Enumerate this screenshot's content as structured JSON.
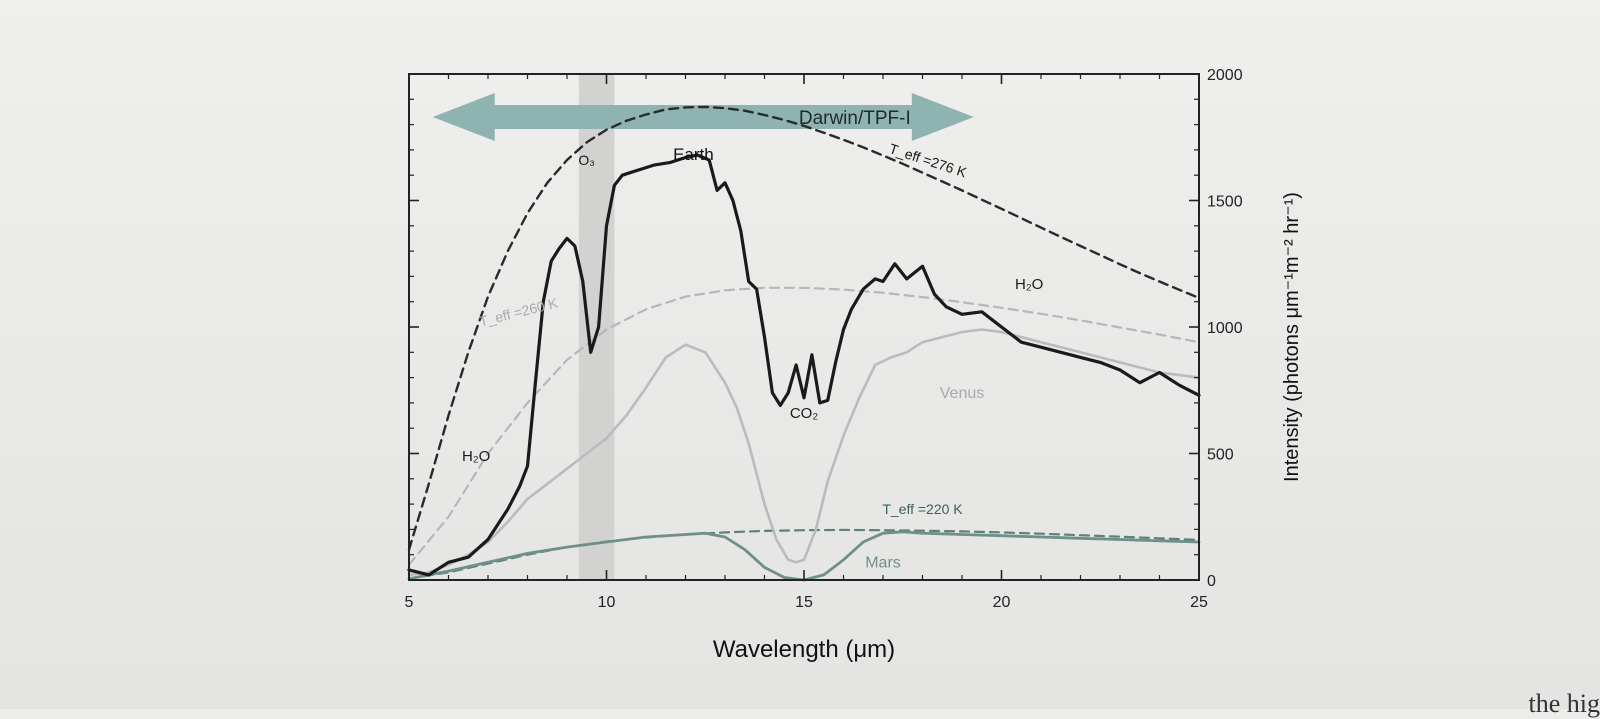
{
  "page": {
    "bottom_fragment": "the hig"
  },
  "colors": {
    "earth": "#1a1a1a",
    "venus": "#b9bcbc",
    "mars": "#6f8f8b",
    "blackbody_276": "#2a2a2a",
    "blackbody_260": "#b5b8b8",
    "blackbody_220": "#5f7f7b",
    "darwin_arrow": "#8fb3b1",
    "o3_band": "#d2d2d0"
  },
  "chart_data": {
    "type": "line",
    "title": "",
    "xlabel": "Wavelength (μm)",
    "ylabel": "Intensity (photons μm⁻¹m⁻² hr⁻¹)",
    "xlim": [
      5,
      25
    ],
    "ylim": [
      0,
      2000
    ],
    "x_ticks": [
      5,
      10,
      15,
      20,
      25
    ],
    "y_ticks": [
      0,
      500,
      1000,
      1500,
      2000
    ],
    "x_tick_labels": [
      "5",
      "10",
      "15",
      "20",
      "25"
    ],
    "y_tick_labels": [
      "0",
      "500",
      "1000",
      "1500",
      "2000"
    ],
    "y_axis_side": "right",
    "grid": false,
    "bands": [
      {
        "name": "O3",
        "label": "O₃",
        "x_range": [
          9.3,
          10.2
        ]
      }
    ],
    "arrow": {
      "label": "Darwin/TPF-I",
      "x_range": [
        5.6,
        19.3
      ],
      "y": 1830
    },
    "annotations": [
      {
        "text": "H₂O",
        "x": 6.7,
        "y": 470
      },
      {
        "text": "Earth",
        "x": 12.2,
        "y": 1660
      },
      {
        "text": "CO₂",
        "x": 15.0,
        "y": 640
      },
      {
        "text": "H₂O",
        "x": 20.7,
        "y": 1150
      },
      {
        "text": "Venus",
        "x": 19.0,
        "y": 720
      },
      {
        "text": "Mars",
        "x": 17.0,
        "y": 50
      },
      {
        "text": "T_eff =276 K",
        "x": 18.1,
        "y": 1640
      },
      {
        "text": "T_eff =260 K",
        "x": 7.8,
        "y": 1040
      },
      {
        "text": "T_eff =220 K",
        "x": 18.0,
        "y": 260
      }
    ],
    "series": [
      {
        "name": "Earth",
        "style": "solid",
        "x": [
          5,
          5.5,
          6,
          6.5,
          7,
          7.5,
          7.8,
          8,
          8.2,
          8.4,
          8.6,
          8.8,
          9,
          9.2,
          9.4,
          9.6,
          9.8,
          10,
          10.2,
          10.4,
          10.8,
          11.2,
          11.6,
          12,
          12.3,
          12.6,
          12.8,
          13,
          13.2,
          13.4,
          13.6,
          13.8,
          14,
          14.2,
          14.4,
          14.6,
          14.8,
          15,
          15.2,
          15.4,
          15.6,
          15.8,
          16,
          16.2,
          16.5,
          16.8,
          17,
          17.3,
          17.6,
          18,
          18.3,
          18.6,
          19,
          19.5,
          20,
          20.5,
          21,
          21.5,
          22,
          22.5,
          23,
          23.5,
          24,
          24.5,
          25
        ],
        "y": [
          40,
          20,
          70,
          90,
          160,
          280,
          370,
          450,
          780,
          1100,
          1260,
          1310,
          1350,
          1320,
          1180,
          900,
          1000,
          1400,
          1560,
          1600,
          1620,
          1640,
          1650,
          1670,
          1680,
          1660,
          1540,
          1570,
          1500,
          1380,
          1180,
          1150,
          960,
          740,
          690,
          740,
          850,
          720,
          890,
          700,
          710,
          860,
          990,
          1070,
          1150,
          1190,
          1180,
          1250,
          1190,
          1240,
          1130,
          1080,
          1050,
          1060,
          1000,
          940,
          920,
          900,
          880,
          860,
          830,
          780,
          820,
          770,
          730
        ]
      },
      {
        "name": "Venus",
        "style": "solid",
        "x": [
          5,
          5.5,
          6,
          6.5,
          7,
          7.5,
          8,
          8.5,
          9,
          9.5,
          10,
          10.5,
          11,
          11.5,
          12,
          12.5,
          13,
          13.3,
          13.6,
          14,
          14.3,
          14.6,
          14.8,
          15,
          15.3,
          15.6,
          16,
          16.4,
          16.8,
          17.2,
          17.6,
          18,
          18.5,
          19,
          19.5,
          20,
          20.5,
          21,
          21.5,
          22,
          22.5,
          23,
          23.5,
          24,
          24.5,
          25
        ],
        "y": [
          20,
          30,
          60,
          100,
          150,
          230,
          320,
          380,
          440,
          500,
          560,
          650,
          760,
          880,
          930,
          900,
          780,
          680,
          540,
          300,
          160,
          80,
          70,
          80,
          200,
          390,
          570,
          720,
          850,
          880,
          900,
          940,
          960,
          980,
          990,
          980,
          960,
          940,
          920,
          900,
          880,
          860,
          840,
          820,
          810,
          800
        ]
      },
      {
        "name": "Mars",
        "style": "solid",
        "x": [
          5,
          6,
          7,
          8,
          9,
          10,
          11,
          12,
          12.5,
          13,
          13.5,
          14,
          14.5,
          15,
          15.5,
          16,
          16.5,
          17,
          17.5,
          18,
          19,
          20,
          21,
          22,
          23,
          24,
          25
        ],
        "y": [
          5,
          35,
          70,
          105,
          130,
          150,
          170,
          180,
          185,
          170,
          120,
          50,
          10,
          0,
          20,
          80,
          150,
          185,
          190,
          185,
          180,
          175,
          170,
          165,
          160,
          155,
          150
        ]
      },
      {
        "name": "Teff=276 K",
        "style": "dashed",
        "x": [
          5,
          5.5,
          6,
          6.5,
          7,
          7.5,
          8,
          8.5,
          9,
          9.5,
          10,
          10.5,
          11,
          11.5,
          12,
          12.5,
          13,
          13.5,
          14,
          14.5,
          15,
          15.5,
          16,
          16.5,
          17,
          17.5,
          18,
          18.5,
          19,
          19.5,
          20,
          20.5,
          21,
          21.5,
          22,
          22.5,
          23,
          23.5,
          24,
          24.5,
          25
        ],
        "y": [
          120,
          380,
          650,
          900,
          1120,
          1300,
          1450,
          1570,
          1660,
          1730,
          1780,
          1815,
          1840,
          1860,
          1868,
          1870,
          1865,
          1855,
          1838,
          1818,
          1795,
          1768,
          1740,
          1710,
          1678,
          1645,
          1610,
          1575,
          1540,
          1503,
          1467,
          1430,
          1393,
          1356,
          1320,
          1284,
          1248,
          1213,
          1180,
          1147,
          1115
        ]
      },
      {
        "name": "Teff=260 K",
        "style": "dashed",
        "x": [
          5,
          6,
          7,
          8,
          9,
          10,
          11,
          12,
          13,
          14,
          15,
          16,
          17,
          18,
          19,
          20,
          21,
          22,
          23,
          24,
          25
        ],
        "y": [
          60,
          250,
          500,
          700,
          870,
          990,
          1070,
          1120,
          1145,
          1155,
          1155,
          1148,
          1135,
          1118,
          1098,
          1076,
          1052,
          1026,
          998,
          970,
          940
        ]
      },
      {
        "name": "Teff=220 K",
        "style": "dashed",
        "x": [
          5,
          6,
          7,
          8,
          9,
          10,
          11,
          12,
          13,
          14,
          15,
          16,
          17,
          18,
          19,
          20,
          21,
          22,
          23,
          24,
          25
        ],
        "y": [
          5,
          30,
          65,
          100,
          130,
          152,
          168,
          180,
          188,
          194,
          197,
          198,
          197,
          195,
          192,
          188,
          183,
          177,
          171,
          165,
          158
        ]
      }
    ]
  }
}
